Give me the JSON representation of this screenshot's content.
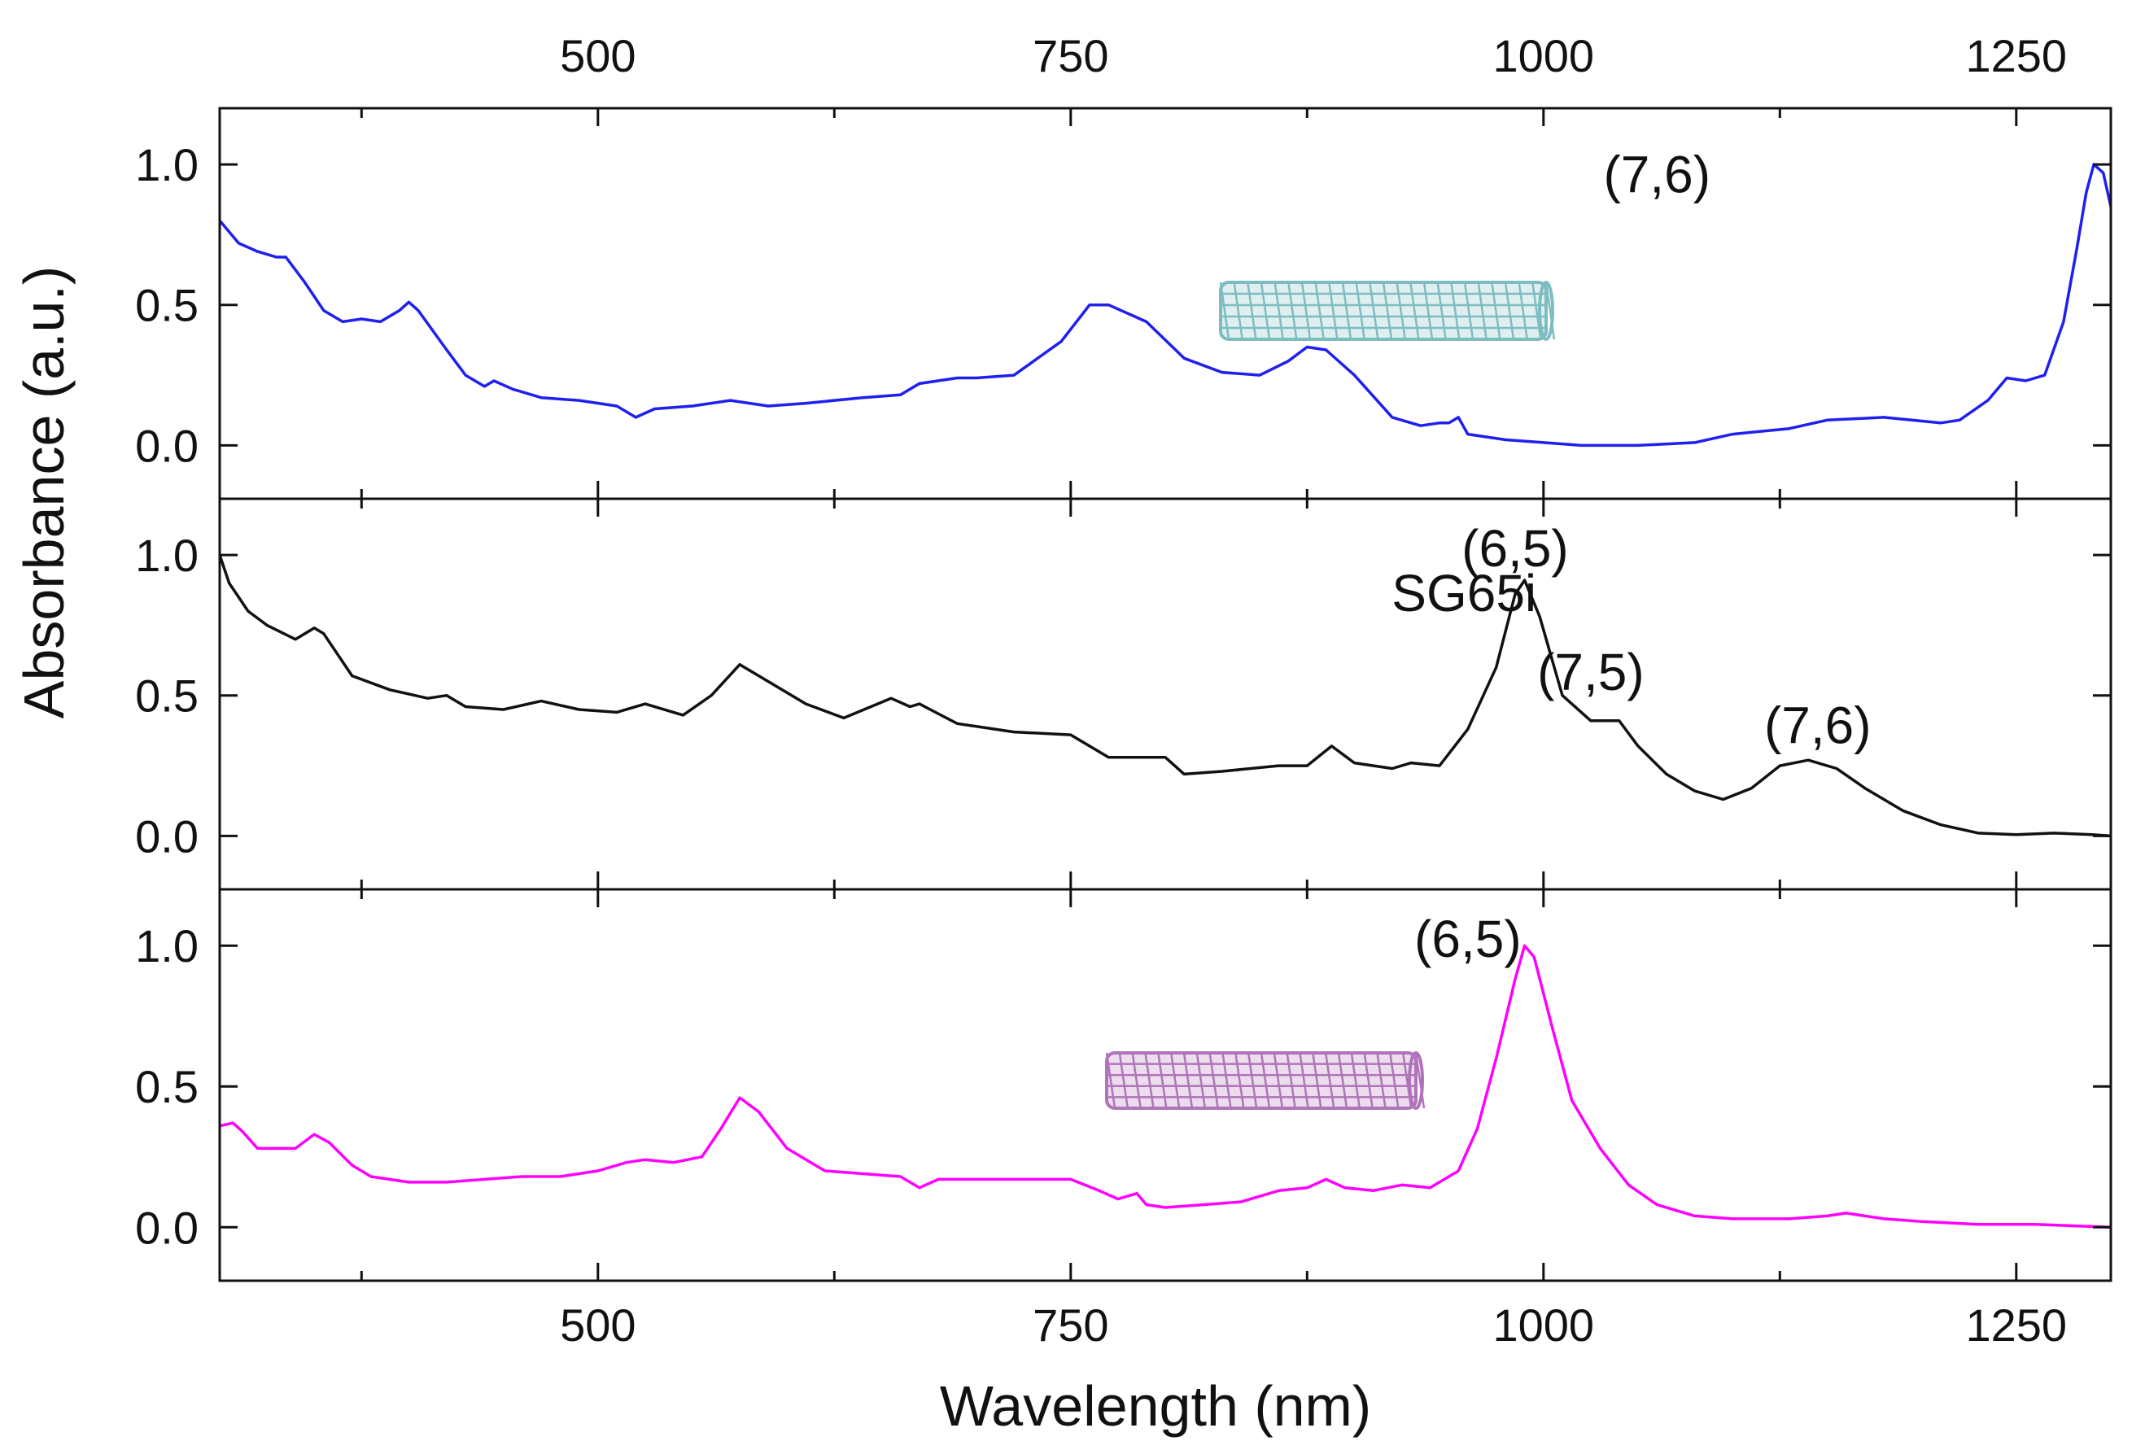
{
  "chart_data": {
    "type": "line",
    "xlabel": "Wavelength (nm)",
    "ylabel": "Absorbance (a.u.)",
    "xlim": [
      300,
      1300
    ],
    "x_ticks": [
      500,
      750,
      1000,
      1250
    ],
    "x_minor_ticks": [
      375,
      625,
      875,
      1125
    ],
    "y_ticks": [
      0.0,
      0.5,
      1.0
    ],
    "y_tick_labels": [
      "0.0",
      "0.5",
      "1.0"
    ],
    "panels": [
      {
        "name": "top",
        "ylim": [
          -0.19,
          1.2
        ],
        "color": "#1f1ff0",
        "annotations": [
          {
            "text": "(7,6)",
            "x": 1060,
            "y": 0.9
          }
        ],
        "nanotube_color": "#6fb6bb",
        "points": [
          [
            300,
            0.8
          ],
          [
            310,
            0.72
          ],
          [
            320,
            0.69
          ],
          [
            330,
            0.67
          ],
          [
            335,
            0.67
          ],
          [
            345,
            0.58
          ],
          [
            355,
            0.48
          ],
          [
            365,
            0.44
          ],
          [
            375,
            0.45
          ],
          [
            385,
            0.44
          ],
          [
            395,
            0.48
          ],
          [
            400,
            0.51
          ],
          [
            405,
            0.48
          ],
          [
            420,
            0.34
          ],
          [
            430,
            0.25
          ],
          [
            440,
            0.21
          ],
          [
            445,
            0.23
          ],
          [
            455,
            0.2
          ],
          [
            470,
            0.17
          ],
          [
            490,
            0.16
          ],
          [
            510,
            0.14
          ],
          [
            520,
            0.1
          ],
          [
            530,
            0.13
          ],
          [
            550,
            0.14
          ],
          [
            570,
            0.16
          ],
          [
            590,
            0.14
          ],
          [
            610,
            0.15
          ],
          [
            640,
            0.17
          ],
          [
            660,
            0.18
          ],
          [
            670,
            0.22
          ],
          [
            690,
            0.24
          ],
          [
            700,
            0.24
          ],
          [
            720,
            0.25
          ],
          [
            745,
            0.37
          ],
          [
            760,
            0.5
          ],
          [
            770,
            0.5
          ],
          [
            790,
            0.44
          ],
          [
            810,
            0.31
          ],
          [
            830,
            0.26
          ],
          [
            850,
            0.25
          ],
          [
            865,
            0.3
          ],
          [
            875,
            0.35
          ],
          [
            885,
            0.34
          ],
          [
            900,
            0.25
          ],
          [
            920,
            0.1
          ],
          [
            935,
            0.07
          ],
          [
            945,
            0.08
          ],
          [
            950,
            0.08
          ],
          [
            955,
            0.1
          ],
          [
            960,
            0.04
          ],
          [
            980,
            0.02
          ],
          [
            1000,
            0.01
          ],
          [
            1020,
            0.0
          ],
          [
            1050,
            0.0
          ],
          [
            1080,
            0.01
          ],
          [
            1100,
            0.04
          ],
          [
            1130,
            0.06
          ],
          [
            1150,
            0.09
          ],
          [
            1180,
            0.1
          ],
          [
            1210,
            0.08
          ],
          [
            1220,
            0.09
          ],
          [
            1235,
            0.16
          ],
          [
            1245,
            0.24
          ],
          [
            1255,
            0.23
          ],
          [
            1265,
            0.25
          ],
          [
            1275,
            0.44
          ],
          [
            1282,
            0.7
          ],
          [
            1287,
            0.9
          ],
          [
            1291,
            1.0
          ],
          [
            1296,
            0.97
          ],
          [
            1300,
            0.85
          ]
        ]
      },
      {
        "name": "middle",
        "ylim": [
          -0.19,
          1.2
        ],
        "color": "#111111",
        "annotations": [
          {
            "text": "SG65i",
            "x": 958,
            "y": 0.8
          },
          {
            "text": "(6,5)",
            "x": 985,
            "y": 0.96
          },
          {
            "text": "(7,5)",
            "x": 1025,
            "y": 0.52
          },
          {
            "text": "(7,6)",
            "x": 1145,
            "y": 0.33
          }
        ],
        "points": [
          [
            300,
            1.0
          ],
          [
            305,
            0.9
          ],
          [
            315,
            0.8
          ],
          [
            325,
            0.75
          ],
          [
            340,
            0.7
          ],
          [
            350,
            0.74
          ],
          [
            355,
            0.72
          ],
          [
            370,
            0.57
          ],
          [
            390,
            0.52
          ],
          [
            410,
            0.49
          ],
          [
            420,
            0.5
          ],
          [
            430,
            0.46
          ],
          [
            450,
            0.45
          ],
          [
            470,
            0.48
          ],
          [
            490,
            0.45
          ],
          [
            510,
            0.44
          ],
          [
            525,
            0.47
          ],
          [
            545,
            0.43
          ],
          [
            560,
            0.5
          ],
          [
            575,
            0.61
          ],
          [
            590,
            0.55
          ],
          [
            610,
            0.47
          ],
          [
            630,
            0.42
          ],
          [
            655,
            0.49
          ],
          [
            665,
            0.46
          ],
          [
            670,
            0.47
          ],
          [
            690,
            0.4
          ],
          [
            720,
            0.37
          ],
          [
            750,
            0.36
          ],
          [
            770,
            0.28
          ],
          [
            785,
            0.28
          ],
          [
            800,
            0.28
          ],
          [
            810,
            0.22
          ],
          [
            830,
            0.23
          ],
          [
            860,
            0.25
          ],
          [
            875,
            0.25
          ],
          [
            888,
            0.32
          ],
          [
            900,
            0.26
          ],
          [
            920,
            0.24
          ],
          [
            930,
            0.26
          ],
          [
            945,
            0.25
          ],
          [
            960,
            0.38
          ],
          [
            975,
            0.6
          ],
          [
            985,
            0.86
          ],
          [
            990,
            0.91
          ],
          [
            998,
            0.78
          ],
          [
            1010,
            0.5
          ],
          [
            1025,
            0.41
          ],
          [
            1040,
            0.41
          ],
          [
            1050,
            0.32
          ],
          [
            1065,
            0.22
          ],
          [
            1080,
            0.16
          ],
          [
            1095,
            0.13
          ],
          [
            1110,
            0.17
          ],
          [
            1125,
            0.25
          ],
          [
            1140,
            0.27
          ],
          [
            1155,
            0.24
          ],
          [
            1170,
            0.17
          ],
          [
            1190,
            0.09
          ],
          [
            1210,
            0.04
          ],
          [
            1230,
            0.01
          ],
          [
            1250,
            0.005
          ],
          [
            1270,
            0.01
          ],
          [
            1290,
            0.005
          ],
          [
            1300,
            0.0
          ]
        ]
      },
      {
        "name": "bottom",
        "ylim": [
          -0.19,
          1.2
        ],
        "color": "#ff00ff",
        "annotations": [
          {
            "text": "(6,5)",
            "x": 960,
            "y": 0.96
          }
        ],
        "nanotube_color": "#a765b2",
        "points": [
          [
            300,
            0.36
          ],
          [
            307,
            0.37
          ],
          [
            312,
            0.34
          ],
          [
            320,
            0.28
          ],
          [
            340,
            0.28
          ],
          [
            350,
            0.33
          ],
          [
            358,
            0.3
          ],
          [
            370,
            0.22
          ],
          [
            380,
            0.18
          ],
          [
            400,
            0.16
          ],
          [
            420,
            0.16
          ],
          [
            440,
            0.17
          ],
          [
            460,
            0.18
          ],
          [
            480,
            0.18
          ],
          [
            500,
            0.2
          ],
          [
            515,
            0.23
          ],
          [
            525,
            0.24
          ],
          [
            540,
            0.23
          ],
          [
            555,
            0.25
          ],
          [
            565,
            0.35
          ],
          [
            575,
            0.46
          ],
          [
            585,
            0.41
          ],
          [
            600,
            0.28
          ],
          [
            620,
            0.2
          ],
          [
            640,
            0.19
          ],
          [
            660,
            0.18
          ],
          [
            670,
            0.14
          ],
          [
            680,
            0.17
          ],
          [
            720,
            0.17
          ],
          [
            750,
            0.17
          ],
          [
            765,
            0.13
          ],
          [
            775,
            0.1
          ],
          [
            785,
            0.12
          ],
          [
            790,
            0.08
          ],
          [
            800,
            0.07
          ],
          [
            820,
            0.08
          ],
          [
            840,
            0.09
          ],
          [
            860,
            0.13
          ],
          [
            875,
            0.14
          ],
          [
            885,
            0.17
          ],
          [
            895,
            0.14
          ],
          [
            910,
            0.13
          ],
          [
            925,
            0.15
          ],
          [
            940,
            0.14
          ],
          [
            955,
            0.2
          ],
          [
            965,
            0.35
          ],
          [
            975,
            0.6
          ],
          [
            985,
            0.88
          ],
          [
            990,
            1.0
          ],
          [
            995,
            0.96
          ],
          [
            1005,
            0.7
          ],
          [
            1015,
            0.45
          ],
          [
            1030,
            0.28
          ],
          [
            1045,
            0.15
          ],
          [
            1060,
            0.08
          ],
          [
            1080,
            0.04
          ],
          [
            1100,
            0.03
          ],
          [
            1130,
            0.03
          ],
          [
            1150,
            0.04
          ],
          [
            1160,
            0.05
          ],
          [
            1180,
            0.03
          ],
          [
            1200,
            0.02
          ],
          [
            1230,
            0.01
          ],
          [
            1260,
            0.01
          ],
          [
            1300,
            0.0
          ]
        ]
      }
    ]
  }
}
